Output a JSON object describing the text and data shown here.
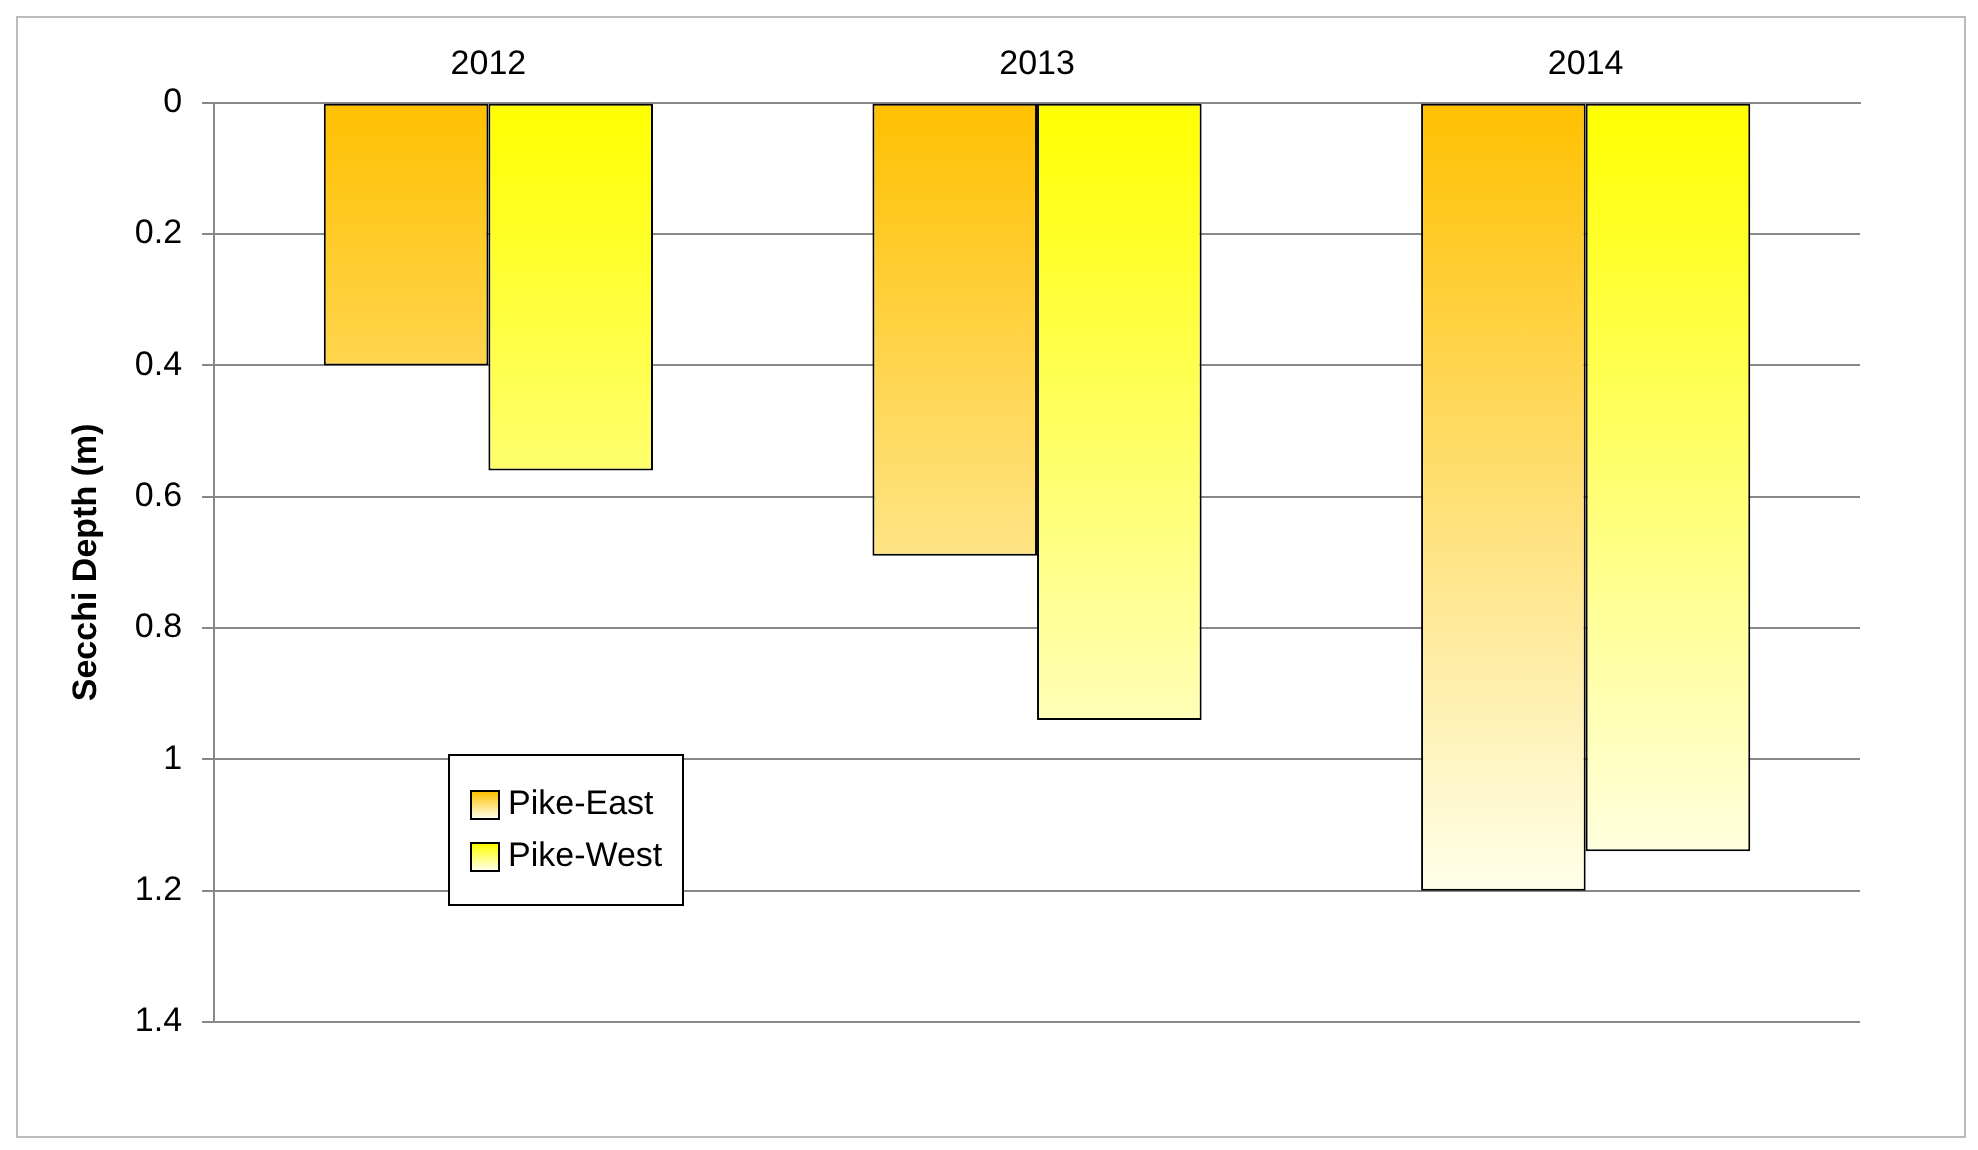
{
  "chart_data": {
    "type": "bar",
    "categories": [
      "2012",
      "2013",
      "2014"
    ],
    "series": [
      {
        "name": "Pike-East",
        "color": "#ffc000",
        "values": [
          0.4,
          0.69,
          1.2
        ]
      },
      {
        "name": "Pike-West",
        "color": "#ffff00",
        "values": [
          0.56,
          0.94,
          1.14
        ]
      }
    ],
    "ylabel": "Secchi Depth (m)",
    "ylim": [
      1.4,
      0
    ],
    "yticks": [
      0,
      0.2,
      0.4,
      0.6,
      0.8,
      1,
      1.2,
      1.4
    ],
    "grid": "y",
    "legend": "bottom left"
  }
}
